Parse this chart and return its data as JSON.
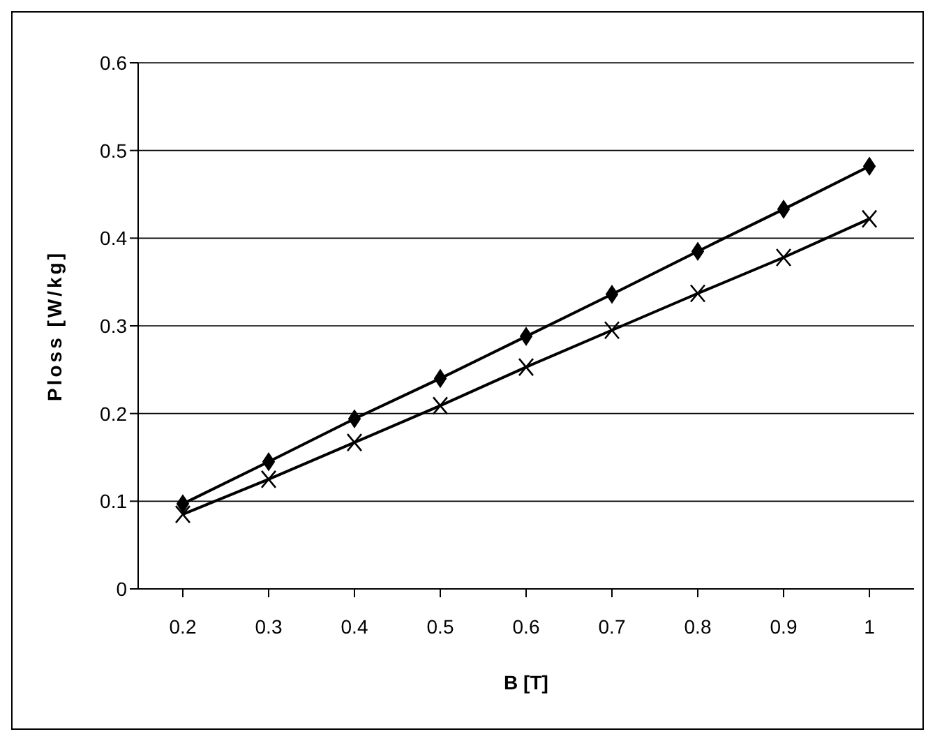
{
  "chart_data": {
    "type": "line",
    "xlabel": "B [T]",
    "ylabel": "Ploss [W/kg]",
    "categories": [
      "0.2",
      "0.3",
      "0.4",
      "0.5",
      "0.6",
      "0.7",
      "0.8",
      "0.9",
      "1"
    ],
    "series": [
      {
        "color": "#000000",
        "marker": "diamond",
        "values": [
          0.097,
          0.145,
          0.194,
          0.24,
          0.288,
          0.336,
          0.385,
          0.433,
          0.482
        ]
      },
      {
        "color": "#000000",
        "marker": "cross",
        "values": [
          0.085,
          0.125,
          0.167,
          0.209,
          0.253,
          0.295,
          0.337,
          0.378,
          0.422
        ]
      }
    ],
    "ylim": [
      0,
      0.6
    ],
    "yticks": [
      0,
      0.1,
      0.2,
      0.3,
      0.4,
      0.5,
      0.6
    ],
    "grid": "y",
    "legend": false,
    "line_style": "solid"
  }
}
